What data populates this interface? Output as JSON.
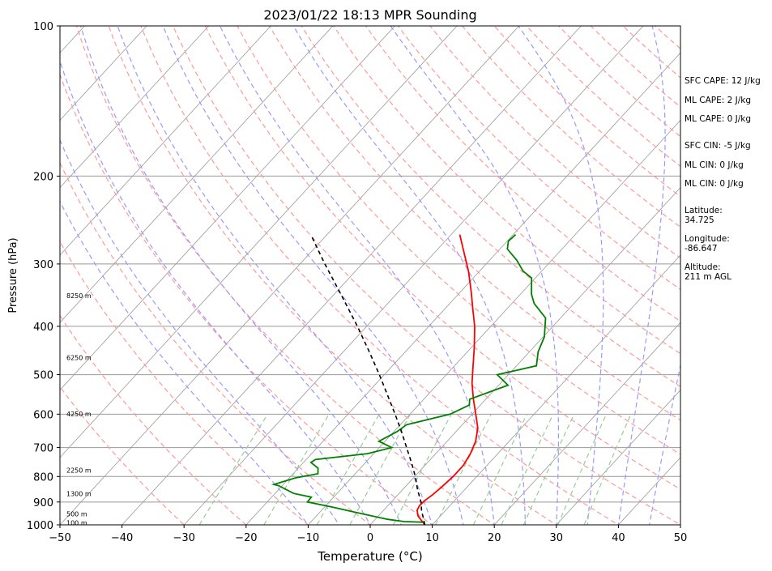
{
  "chart_data": {
    "type": "skew-t",
    "title": "2023/01/22 18:13 MPR Sounding",
    "xlabel": "Temperature (°C)",
    "ylabel": "Pressure (hPa)",
    "xlim": [
      -50,
      50
    ],
    "ylim": [
      1000,
      100
    ],
    "y_scale": "log",
    "x_ticks": [
      -50,
      -40,
      -30,
      -20,
      -10,
      0,
      10,
      20,
      30,
      40,
      50
    ],
    "y_ticks": [
      100,
      200,
      300,
      400,
      500,
      600,
      700,
      800,
      900,
      1000
    ],
    "grid": true,
    "series": [
      {
        "color": "#ff0000",
        "points": [
          [
            1000,
            8.8
          ],
          [
            980,
            7.6
          ],
          [
            960,
            6.4
          ],
          [
            935,
            5.4
          ],
          [
            915,
            5.1
          ],
          [
            895,
            5.2
          ],
          [
            870,
            5.6
          ],
          [
            840,
            5.9
          ],
          [
            800,
            6.2
          ],
          [
            760,
            6.2
          ],
          [
            720,
            5.6
          ],
          [
            680,
            4.6
          ],
          [
            640,
            3.0
          ],
          [
            600,
            0.6
          ],
          [
            560,
            -2.0
          ],
          [
            520,
            -4.6
          ],
          [
            480,
            -7.0
          ],
          [
            440,
            -9.6
          ],
          [
            400,
            -12.6
          ],
          [
            370,
            -15.4
          ],
          [
            340,
            -18.4
          ],
          [
            310,
            -21.8
          ],
          [
            285,
            -25.2
          ],
          [
            262,
            -28.6
          ]
        ]
      },
      {
        "color": "#008000",
        "points": [
          [
            988,
            8.4
          ],
          [
            985,
            5.0
          ],
          [
            975,
            2.0
          ],
          [
            950,
            -3.0
          ],
          [
            920,
            -9.0
          ],
          [
            900,
            -13.5
          ],
          [
            880,
            -13.6
          ],
          [
            865,
            -17.0
          ],
          [
            835,
            -20.5
          ],
          [
            830,
            -21.5
          ],
          [
            820,
            -20.5
          ],
          [
            805,
            -19.0
          ],
          [
            790,
            -16.0
          ],
          [
            770,
            -16.8
          ],
          [
            750,
            -18.8
          ],
          [
            740,
            -18.5
          ],
          [
            720,
            -11.0
          ],
          [
            700,
            -8.0
          ],
          [
            680,
            -11.0
          ],
          [
            650,
            -9.5
          ],
          [
            630,
            -9.0
          ],
          [
            600,
            -3.5
          ],
          [
            575,
            -1.8
          ],
          [
            560,
            -2.6
          ],
          [
            525,
            1.5
          ],
          [
            500,
            -1.8
          ],
          [
            480,
            3.2
          ],
          [
            450,
            1.4
          ],
          [
            420,
            0.2
          ],
          [
            385,
            -2.4
          ],
          [
            360,
            -6.4
          ],
          [
            345,
            -8.2
          ],
          [
            320,
            -10.6
          ],
          [
            310,
            -13.0
          ],
          [
            295,
            -15.6
          ],
          [
            280,
            -18.8
          ],
          [
            270,
            -19.8
          ],
          [
            262,
            -19.6
          ]
        ]
      },
      {
        "color": "#000000",
        "points": [
          [
            1000,
            8.8
          ],
          [
            970,
            7.6
          ],
          [
            940,
            6.3
          ],
          [
            900,
            4.8
          ],
          [
            850,
            2.4
          ],
          [
            800,
            0.1
          ],
          [
            750,
            -2.6
          ],
          [
            700,
            -5.6
          ],
          [
            650,
            -8.8
          ],
          [
            600,
            -12.4
          ],
          [
            550,
            -16.4
          ],
          [
            500,
            -20.8
          ],
          [
            450,
            -25.8
          ],
          [
            400,
            -31.5
          ],
          [
            350,
            -38.2
          ],
          [
            300,
            -46.0
          ],
          [
            262,
            -52.6
          ]
        ]
      }
    ],
    "height_labels": [
      {
        "label": "100 m",
        "p": 990
      },
      {
        "label": "500 m",
        "p": 951
      },
      {
        "label": "1300 m",
        "p": 866
      },
      {
        "label": "2250 m",
        "p": 777
      },
      {
        "label": "4250 m",
        "p": 599
      },
      {
        "label": "6250 m",
        "p": 462
      },
      {
        "label": "8250 m",
        "p": 347
      }
    ]
  },
  "indices": [
    "SFC CAPE: 12 J/kg",
    "ML CAPE: 2 J/kg",
    "ML CAPE: 0 J/kg",
    "SFC CIN: -5 J/kg",
    "ML CIN: 0 J/kg",
    "ML CIN: 0 J/kg"
  ],
  "station": {
    "latitude_label": "Latitude:",
    "latitude": "34.725",
    "longitude_label": "Longitude:",
    "longitude": "-86.647",
    "altitude_label": "Altitude:",
    "altitude": "211 m AGL"
  },
  "colors": {
    "temperature": "#ff0000",
    "dewpoint": "#008000",
    "parcel": "#000000",
    "dry_adiabats": "#ff9999",
    "moist_adiabats": "#9999ff",
    "mixing_ratio": "#99cc99",
    "isotherms": "#999999"
  }
}
